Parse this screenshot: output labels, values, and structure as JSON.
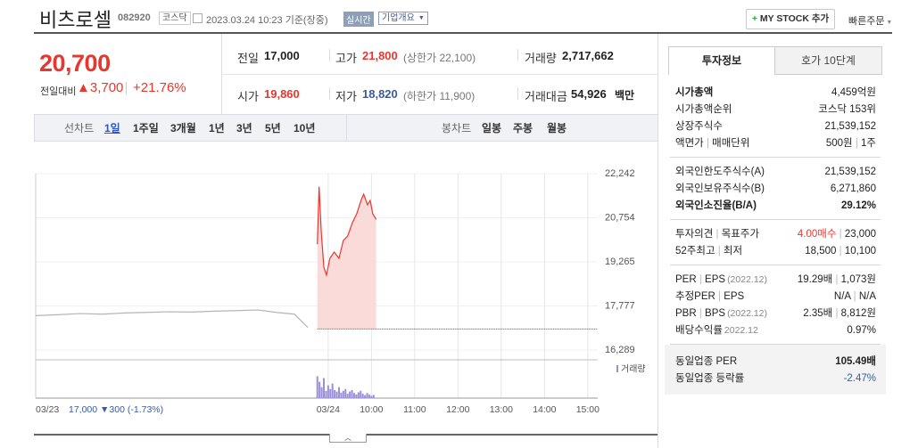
{
  "header": {
    "name": "비츠로셀",
    "code": "082920",
    "market": "코스닥",
    "timestamp": "2023.03.24 10:23 기준(장중)",
    "realtime": "실시간",
    "company_info": "기업개요",
    "my_stock": "MY STOCK 추가",
    "quick_order": "빠른주문"
  },
  "price": {
    "current": "20,700",
    "change_label": "전일대비",
    "change": "3,700",
    "change_rate": "+21.76%"
  },
  "summary": {
    "rows": [
      [
        {
          "label": "전일",
          "value": "17,000"
        },
        {
          "label": "고가",
          "value": "21,800",
          "note": "(상한가 22,100)"
        },
        {
          "label": "거래량",
          "value": "2,717,662"
        }
      ],
      [
        {
          "label": "시가",
          "value": "19,860"
        },
        {
          "label": "저가",
          "value": "18,820",
          "note": "(하한가 11,900)"
        },
        {
          "label": "거래대금",
          "value": "54,926",
          "unit": "백만"
        }
      ]
    ]
  },
  "period_tabs": {
    "line_label": "선차트",
    "line_tabs": [
      "1일",
      "1주일",
      "3개월",
      "1년",
      "3년",
      "5년",
      "10년"
    ],
    "candle_label": "봉차트",
    "candle_tabs": [
      "일봉",
      "주봉",
      "월봉"
    ]
  },
  "chart_data": {
    "type": "line",
    "xlim": [
      -6.76,
      6.23
    ],
    "xticks": [
      {
        "value": -6.76,
        "label": "03/23"
      },
      {
        "value": 0,
        "label": "03/24"
      },
      {
        "value": 1,
        "label": "10:00"
      },
      {
        "value": 2,
        "label": "11:00"
      },
      {
        "value": 3,
        "label": "12:00"
      },
      {
        "value": 4,
        "label": "13:00"
      },
      {
        "value": 5,
        "label": "14:00"
      },
      {
        "value": 6,
        "label": "15:00"
      }
    ],
    "ylim": [
      16289,
      22242
    ],
    "yticks": [
      {
        "value": 22242,
        "label": "22,242"
      },
      {
        "value": 20754,
        "label": "20,754"
      },
      {
        "value": 19265,
        "label": "19,265"
      },
      {
        "value": 17777,
        "label": "17,777"
      },
      {
        "value": 16289,
        "label": "16,289"
      }
    ],
    "prev_day_note": "17,000 ▼300 (-1.73%)",
    "reference_line": 17000,
    "series": [
      {
        "color": "#b4b4b4",
        "x": [
          -6.76,
          -6.25,
          -5.73,
          -5.22,
          -4.7,
          -4.19,
          -3.67,
          -3.15,
          -2.64,
          -2.12,
          -1.61,
          -1.2,
          -0.78,
          -0.47
        ],
        "values": [
          17450,
          17480,
          17520,
          17500,
          17540,
          17560,
          17580,
          17570,
          17600,
          17620,
          17640,
          17560,
          17500,
          17050
        ]
      },
      {
        "color": "#e8372f",
        "fill": "#fbdada",
        "x": [
          -0.25,
          -0.21,
          -0.16,
          -0.1,
          -0.04,
          0.04,
          0.14,
          0.25,
          0.35,
          0.45,
          0.56,
          0.66,
          0.76,
          0.82,
          0.91,
          0.97,
          1.03,
          1.11
        ],
        "values": [
          19860,
          21800,
          20288,
          19085,
          18820,
          19386,
          19596,
          19386,
          19987,
          20137,
          20588,
          20889,
          21340,
          21550,
          21190,
          21340,
          20889,
          20700
        ]
      }
    ],
    "volume": {
      "name": "거래량",
      "color": "#9b8fd9",
      "y2lim": [
        0,
        100
      ],
      "x": [
        -0.25,
        -0.2,
        -0.15,
        -0.1,
        -0.05,
        0,
        0.05,
        0.1,
        0.15,
        0.2,
        0.25,
        0.3,
        0.35,
        0.4,
        0.45,
        0.5,
        0.55,
        0.6,
        0.65,
        0.7,
        0.75,
        0.8,
        0.85,
        0.9,
        0.95,
        1,
        1.05
      ],
      "values": [
        60,
        45,
        30,
        55,
        20,
        35,
        25,
        40,
        22,
        18,
        30,
        15,
        20,
        25,
        12,
        18,
        22,
        14,
        10,
        16,
        20,
        12,
        8,
        14,
        10,
        6,
        9
      ]
    }
  },
  "info_panel": {
    "tabs": [
      "투자정보",
      "호가 10단계"
    ],
    "sections": [
      [
        {
          "label": [
            "시가총액"
          ],
          "values": [
            "4,459억원"
          ]
        },
        {
          "label": [
            "시가총액순위"
          ],
          "values": [
            "코스닥 153위"
          ]
        },
        {
          "label": [
            "상장주식수"
          ],
          "values": [
            "21,539,152"
          ]
        },
        {
          "label": [
            "액면가",
            "매매단위"
          ],
          "values": [
            "500원",
            "1주"
          ]
        }
      ],
      [
        {
          "label": [
            "외국인한도주식수(A)"
          ],
          "values": [
            "21,539,152"
          ]
        },
        {
          "label": [
            "외국인보유주식수(B)"
          ],
          "values": [
            "6,271,860"
          ]
        },
        {
          "label": [
            "외국인소진율(B/A)"
          ],
          "values": [
            "29.12%"
          ]
        }
      ],
      [
        {
          "label": [
            "투자의견",
            "목표주가"
          ],
          "values": [
            "4.00매수",
            "23,000"
          ]
        },
        {
          "label": [
            "52주최고",
            "최저"
          ],
          "values": [
            "18,500",
            "10,100"
          ]
        }
      ],
      [
        {
          "label": [
            "PER",
            "EPS"
          ],
          "date": "(2022.12)",
          "values": [
            "19.29배",
            "1,073원"
          ]
        },
        {
          "label": [
            "추정PER",
            "EPS"
          ],
          "values": [
            "N/A",
            "N/A"
          ]
        },
        {
          "label": [
            "PBR",
            "BPS"
          ],
          "date": "(2022.12)",
          "values": [
            "2.35배",
            "8,812원"
          ]
        },
        {
          "label": [
            "배당수익률"
          ],
          "date": "2022.12",
          "values": [
            "0.97%"
          ]
        }
      ],
      [
        {
          "label": [
            "동일업종 PER"
          ],
          "values": [
            "105.49배"
          ]
        },
        {
          "label": [
            "동일업종 등락률"
          ],
          "values": [
            "-2.47%"
          ]
        }
      ]
    ]
  }
}
